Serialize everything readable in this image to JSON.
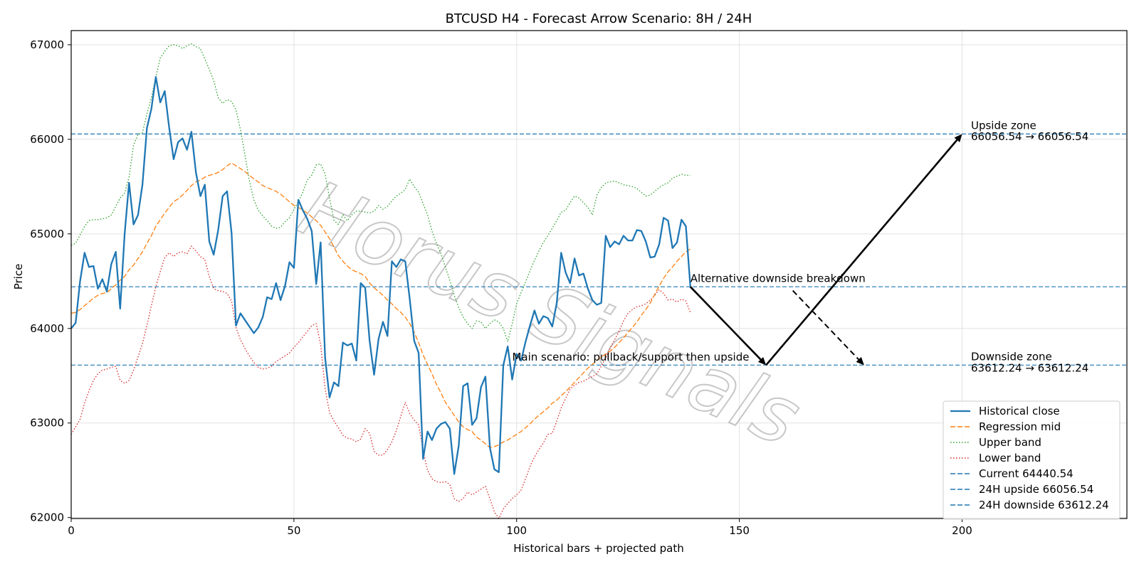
{
  "chart_data": {
    "type": "line",
    "title": "BTCUSD H4 - Forecast Arrow Scenario: 8H / 24H",
    "xlabel": "Historical bars + projected path",
    "ylabel": "Price",
    "xlim": [
      0,
      237
    ],
    "ylim": [
      61990,
      67150
    ],
    "xticks": [
      0,
      50,
      100,
      150,
      200
    ],
    "yticks": [
      62000,
      63000,
      64000,
      65000,
      66000,
      67000
    ],
    "grid": true,
    "legend_position": "lower-right",
    "colors": {
      "close": "#1f77b4",
      "mid": "#ff7f0e",
      "upper": "#2ca02c",
      "lower": "#d62728",
      "hline": "#1f77b4",
      "arrow": "#000000"
    },
    "series": [
      {
        "key": "close",
        "name": "Historical close",
        "style": "solid",
        "x_start": 0,
        "values": [
          64000,
          64060,
          64500,
          64800,
          64650,
          64660,
          64420,
          64520,
          64390,
          64680,
          64810,
          64210,
          65000,
          65540,
          65100,
          65200,
          65520,
          66120,
          66320,
          66660,
          66390,
          66510,
          66120,
          65790,
          65970,
          66010,
          65890,
          66080,
          65650,
          65400,
          65520,
          64920,
          64780,
          65040,
          65400,
          65450,
          65010,
          64030,
          64160,
          64090,
          64020,
          63950,
          64010,
          64120,
          64330,
          64310,
          64480,
          64300,
          64450,
          64700,
          64640,
          65360,
          65250,
          65160,
          65030,
          64470,
          64910,
          63690,
          63270,
          63430,
          63390,
          63850,
          63820,
          63840,
          63660,
          64480,
          64430,
          63870,
          63510,
          63890,
          64070,
          63920,
          64710,
          64650,
          64730,
          64710,
          64310,
          63870,
          63740,
          62620,
          62910,
          62820,
          62940,
          62990,
          63010,
          62940,
          62460,
          62760,
          63390,
          63420,
          62980,
          63050,
          63380,
          63490,
          62740,
          62510,
          62480,
          63610,
          63810,
          63460,
          63730,
          63660,
          63860,
          64030,
          64190,
          64050,
          64130,
          64110,
          64020,
          64270,
          64800,
          64590,
          64480,
          64740,
          64560,
          64580,
          64420,
          64300,
          64250,
          64270,
          64980,
          64860,
          64920,
          64890,
          64980,
          64930,
          64930,
          65040,
          65030,
          64920,
          64750,
          64760,
          64890,
          65170,
          65140,
          64850,
          64910,
          65150,
          65080,
          64440
        ]
      },
      {
        "key": "mid",
        "name": "Regression mid",
        "style": "dashed",
        "x_start": 0,
        "values": [
          64160,
          64170,
          64200,
          64240,
          64280,
          64320,
          64350,
          64370,
          64380,
          64420,
          64460,
          64510,
          64550,
          64620,
          64670,
          64740,
          64810,
          64900,
          64980,
          65080,
          65150,
          65220,
          65280,
          65340,
          65370,
          65410,
          65460,
          65510,
          65550,
          65570,
          65600,
          65620,
          65630,
          65650,
          65680,
          65720,
          65750,
          65720,
          65690,
          65660,
          65620,
          65580,
          65550,
          65510,
          65490,
          65470,
          65450,
          65420,
          65380,
          65340,
          65300,
          65280,
          65250,
          65220,
          65180,
          65140,
          65090,
          65020,
          64950,
          64860,
          64770,
          64710,
          64660,
          64620,
          64600,
          64580,
          64550,
          64480,
          64430,
          64390,
          64350,
          64300,
          64260,
          64210,
          64170,
          64120,
          64050,
          63960,
          63850,
          63720,
          63620,
          63520,
          63410,
          63320,
          63220,
          63150,
          63080,
          63010,
          62960,
          62930,
          62910,
          62850,
          62820,
          62780,
          62740,
          62750,
          62770,
          62800,
          62820,
          62850,
          62880,
          62910,
          62950,
          62990,
          63040,
          63080,
          63120,
          63160,
          63210,
          63240,
          63290,
          63330,
          63380,
          63430,
          63480,
          63530,
          63580,
          63620,
          63660,
          63700,
          63730,
          63760,
          63800,
          63850,
          63900,
          63960,
          64010,
          64070,
          64140,
          64200,
          64270,
          64360,
          64450,
          64530,
          64600,
          64650,
          64710,
          64760,
          64810,
          64840
        ]
      },
      {
        "key": "upper",
        "name": "Upper band",
        "style": "dotted",
        "x_start": 0,
        "values": [
          64880,
          64900,
          64990,
          65080,
          65140,
          65150,
          65150,
          65160,
          65170,
          65200,
          65290,
          65380,
          65430,
          65600,
          65940,
          66050,
          66070,
          66270,
          66440,
          66660,
          66860,
          66930,
          66990,
          67000,
          66990,
          66960,
          66990,
          67010,
          66980,
          66960,
          66850,
          66740,
          66620,
          66440,
          66380,
          66420,
          66400,
          66310,
          66100,
          65840,
          65560,
          65360,
          65250,
          65190,
          65140,
          65080,
          65060,
          65070,
          65130,
          65170,
          65260,
          65340,
          65440,
          65570,
          65620,
          65730,
          65740,
          65630,
          65380,
          65140,
          65100,
          65200,
          65140,
          65200,
          65240,
          65240,
          65230,
          65220,
          65240,
          65300,
          65260,
          65290,
          65350,
          65400,
          65430,
          65470,
          65580,
          65500,
          65440,
          65320,
          65200,
          65030,
          64900,
          64790,
          64650,
          64510,
          64350,
          64220,
          64120,
          64050,
          64000,
          64080,
          64070,
          64000,
          64050,
          64090,
          64070,
          64000,
          63860,
          64050,
          64260,
          64380,
          64490,
          64610,
          64720,
          64820,
          64910,
          64980,
          65060,
          65140,
          65230,
          65250,
          65330,
          65400,
          65380,
          65330,
          65280,
          65200,
          65410,
          65490,
          65540,
          65550,
          65560,
          65540,
          65520,
          65510,
          65500,
          65480,
          65440,
          65400,
          65410,
          65450,
          65490,
          65520,
          65540,
          65590,
          65610,
          65630,
          65620,
          65620
        ]
      },
      {
        "key": "lower",
        "name": "Lower band",
        "style": "dotted",
        "x_start": 0,
        "values": [
          62880,
          62960,
          63040,
          63210,
          63340,
          63450,
          63520,
          63560,
          63570,
          63590,
          63600,
          63450,
          63420,
          63450,
          63560,
          63700,
          63840,
          64030,
          64240,
          64440,
          64600,
          64750,
          64800,
          64760,
          64800,
          64810,
          64790,
          64870,
          64820,
          64760,
          64730,
          64550,
          64420,
          64400,
          64390,
          64370,
          64290,
          64010,
          63880,
          63790,
          63710,
          63640,
          63590,
          63570,
          63580,
          63600,
          63650,
          63680,
          63710,
          63740,
          63800,
          63850,
          63910,
          63970,
          64030,
          64050,
          63830,
          63360,
          63110,
          63020,
          62950,
          62870,
          62840,
          62830,
          62800,
          62830,
          62940,
          62890,
          62700,
          62660,
          62660,
          62720,
          62800,
          62920,
          63070,
          63220,
          63100,
          63030,
          62980,
          62710,
          62500,
          62410,
          62380,
          62370,
          62380,
          62350,
          62200,
          62170,
          62200,
          62270,
          62240,
          62270,
          62300,
          62330,
          62200,
          62060,
          61990,
          62090,
          62150,
          62200,
          62240,
          62290,
          62410,
          62540,
          62640,
          62720,
          62790,
          62880,
          62890,
          63020,
          63160,
          63260,
          63360,
          63400,
          63430,
          63440,
          63470,
          63490,
          63520,
          63600,
          63690,
          63790,
          63880,
          63970,
          64080,
          64160,
          64200,
          64230,
          64240,
          64260,
          64300,
          64350,
          64410,
          64370,
          64300,
          64310,
          64280,
          64310,
          64290,
          64170
        ]
      }
    ],
    "reference_lines": [
      {
        "name": "Current 64440.54",
        "y": 64440.54
      },
      {
        "name": "24H upside 66056.54",
        "y": 66056.54
      },
      {
        "name": "24H downside 63612.24",
        "y": 63612.24
      }
    ],
    "arrows": [
      {
        "name": "main-down",
        "from": [
          139,
          64440.54
        ],
        "to": [
          156,
          63612.24
        ],
        "style": "solid"
      },
      {
        "name": "main-up",
        "from": [
          156,
          63612.24
        ],
        "to": [
          200,
          66056.54
        ],
        "style": "solid"
      },
      {
        "name": "alt-down",
        "from": [
          162,
          64400
        ],
        "to": [
          178,
          63612.24
        ],
        "style": "dashed"
      }
    ],
    "annotations": [
      {
        "text": "Upside zone",
        "x": 202,
        "y": 66110
      },
      {
        "text": "66056.54 → 66056.54",
        "x": 202,
        "y": 65990
      },
      {
        "text": "Alternative downside breakdown",
        "x": 139,
        "y": 64490
      },
      {
        "text": "Main scenario: pullback/support then upside",
        "x": 99,
        "y": 63660
      },
      {
        "text": "Downside zone",
        "x": 202,
        "y": 63665
      },
      {
        "text": "63612.24 → 63612.24",
        "x": 202,
        "y": 63545
      }
    ],
    "watermark": "Horus Signals"
  }
}
